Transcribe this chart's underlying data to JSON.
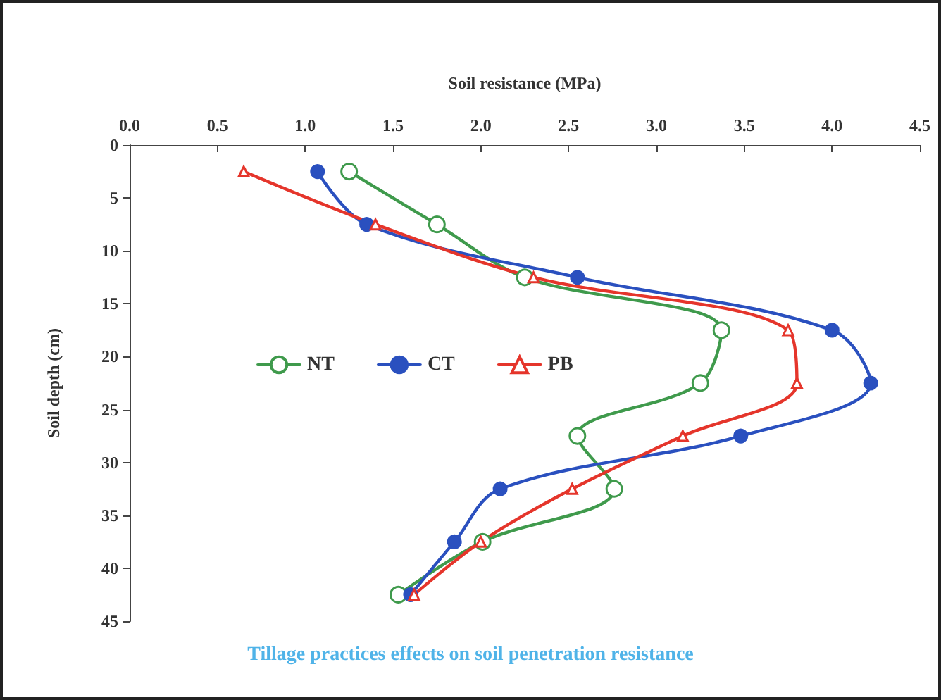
{
  "chart_data": {
    "type": "line",
    "title": "Tillage practices effects on soil penetration resistance",
    "xlabel": "Soil resistance (MPa)",
    "ylabel": "Soil depth (cm)",
    "xlim": [
      0,
      4.5
    ],
    "xticks": [
      {
        "value": 0,
        "label": "0.0"
      },
      {
        "value": 0.5,
        "label": "0.5"
      },
      {
        "value": 1,
        "label": "1.0"
      },
      {
        "value": 1.5,
        "label": "1.5"
      },
      {
        "value": 2,
        "label": "2.0"
      },
      {
        "value": 2.5,
        "label": "2.5"
      },
      {
        "value": 3,
        "label": "3.0"
      },
      {
        "value": 3.5,
        "label": "3.5"
      },
      {
        "value": 4,
        "label": "4.0"
      },
      {
        "value": 4.5,
        "label": "4.5"
      }
    ],
    "ylim": [
      45,
      0
    ],
    "yticks": [
      0,
      5,
      10,
      15,
      20,
      25,
      30,
      35,
      40,
      45
    ],
    "grid": false,
    "legend": "center",
    "series": [
      {
        "name": "NT",
        "color": "#3f9a4c",
        "marker": "circle",
        "x": [
          1.25,
          1.75,
          2.25,
          3.37,
          3.25,
          2.55,
          2.76,
          2.01,
          1.53
        ],
        "values": [
          2.5,
          7.5,
          12.5,
          17.5,
          22.5,
          27.5,
          32.5,
          37.5,
          42.5
        ]
      },
      {
        "name": "CT",
        "color": "#2a50bf",
        "marker": "circle",
        "x": [
          1.07,
          1.35,
          2.55,
          4.0,
          4.22,
          3.48,
          2.11,
          1.85,
          1.6
        ],
        "values": [
          2.5,
          7.5,
          12.5,
          17.5,
          22.5,
          27.5,
          32.5,
          37.5,
          42.5
        ]
      },
      {
        "name": "PB",
        "color": "#e5352b",
        "marker": "triangle",
        "x": [
          0.65,
          1.4,
          2.3,
          3.75,
          3.8,
          3.15,
          2.52,
          2.0,
          1.62
        ],
        "values": [
          2.5,
          7.5,
          12.5,
          17.5,
          22.5,
          27.5,
          32.5,
          37.5,
          42.5
        ]
      }
    ]
  }
}
